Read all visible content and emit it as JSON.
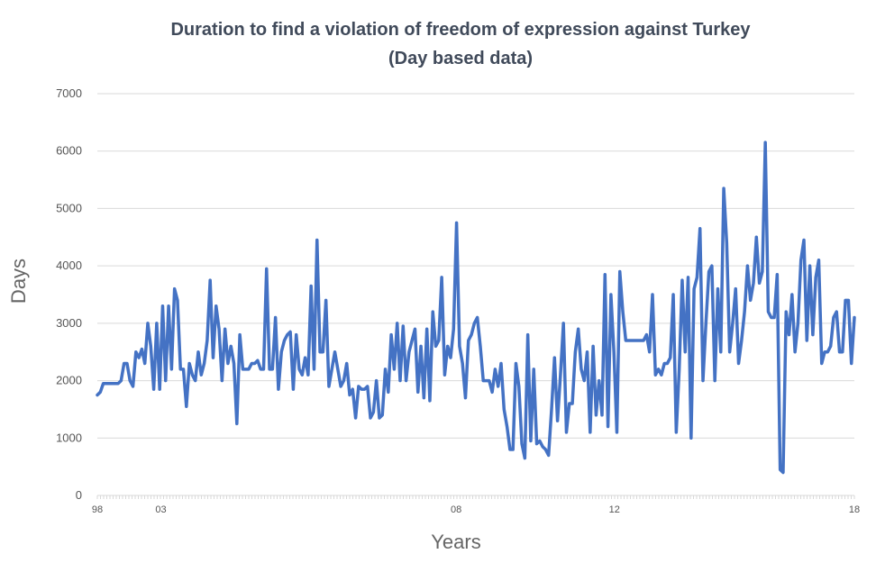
{
  "chart_data": {
    "type": "line",
    "title": "Duration to find a violation of freedom of expression against Turkey",
    "subtitle": "(Day based data)",
    "xlabel": "Years",
    "ylabel": "Days",
    "ylim": [
      0,
      7000
    ],
    "yticks": [
      0,
      1000,
      2000,
      3000,
      4000,
      5000,
      6000,
      7000
    ],
    "xticks": [
      {
        "label": "98",
        "pos": 0
      },
      {
        "label": "03",
        "pos": 0.084
      },
      {
        "label": "08",
        "pos": 0.474
      },
      {
        "label": "12",
        "pos": 0.683
      },
      {
        "label": "18",
        "pos": 1
      }
    ],
    "grid": "horizontal",
    "series": [
      {
        "color": "#4472c4",
        "values": [
          1750,
          1800,
          1950,
          1950,
          1950,
          1950,
          1950,
          1950,
          2000,
          2300,
          2300,
          2000,
          1900,
          2500,
          2400,
          2550,
          2300,
          3000,
          2600,
          1850,
          3000,
          1850,
          3300,
          2000,
          3300,
          2200,
          3600,
          3400,
          2200,
          2200,
          1550,
          2300,
          2100,
          2000,
          2500,
          2100,
          2300,
          2700,
          3750,
          2400,
          3300,
          2900,
          2000,
          2900,
          2300,
          2600,
          2300,
          1250,
          2800,
          2200,
          2200,
          2200,
          2300,
          2300,
          2350,
          2200,
          2200,
          3950,
          2200,
          2200,
          3100,
          1850,
          2500,
          2700,
          2800,
          2850,
          1850,
          2800,
          2200,
          2100,
          2400,
          2100,
          3650,
          2200,
          4450,
          2500,
          2500,
          3400,
          1900,
          2200,
          2500,
          2200,
          1900,
          2000,
          2300,
          1750,
          1850,
          1350,
          1900,
          1850,
          1850,
          1900,
          1350,
          1450,
          2000,
          1350,
          1400,
          2200,
          1800,
          2800,
          2200,
          3000,
          2000,
          2950,
          2000,
          2500,
          2700,
          2900,
          1800,
          2600,
          1700,
          2900,
          1650,
          3200,
          2600,
          2700,
          3800,
          2100,
          2600,
          2400,
          2900,
          4750,
          2600,
          2300,
          1700,
          2700,
          2800,
          3000,
          3100,
          2600,
          2000,
          2000,
          2000,
          1800,
          2200,
          1900,
          2300,
          1500,
          1200,
          800,
          800,
          2300,
          1900,
          900,
          650,
          2800,
          950,
          2200,
          900,
          950,
          850,
          800,
          700,
          1500,
          2400,
          1300,
          2100,
          3000,
          1100,
          1600,
          1600,
          2500,
          2900,
          2200,
          2000,
          2500,
          1100,
          2600,
          1400,
          2000,
          1400,
          3850,
          1200,
          3500,
          2500,
          1100,
          3900,
          3200,
          2700,
          2700,
          2700,
          2700,
          2700,
          2700,
          2700,
          2800,
          2500,
          3500,
          2100,
          2200,
          2100,
          2300,
          2300,
          2400,
          3500,
          1100,
          2200,
          3750,
          2500,
          3800,
          1000,
          3600,
          3800,
          4650,
          2000,
          3000,
          3900,
          4000,
          2000,
          3600,
          2500,
          5350,
          4400,
          2500,
          3000,
          3600,
          2300,
          2700,
          3200,
          4000,
          3400,
          3700,
          4500,
          3700,
          3900,
          6150,
          3200,
          3100,
          3100,
          3850,
          450,
          400,
          3200,
          2800,
          3500,
          2500,
          3000,
          4100,
          4450,
          2700,
          4000,
          2800,
          3800,
          4100,
          2300,
          2500,
          2500,
          2600,
          3100,
          3200,
          2500,
          2500,
          3400,
          3400,
          2300,
          3100
        ]
      }
    ]
  }
}
